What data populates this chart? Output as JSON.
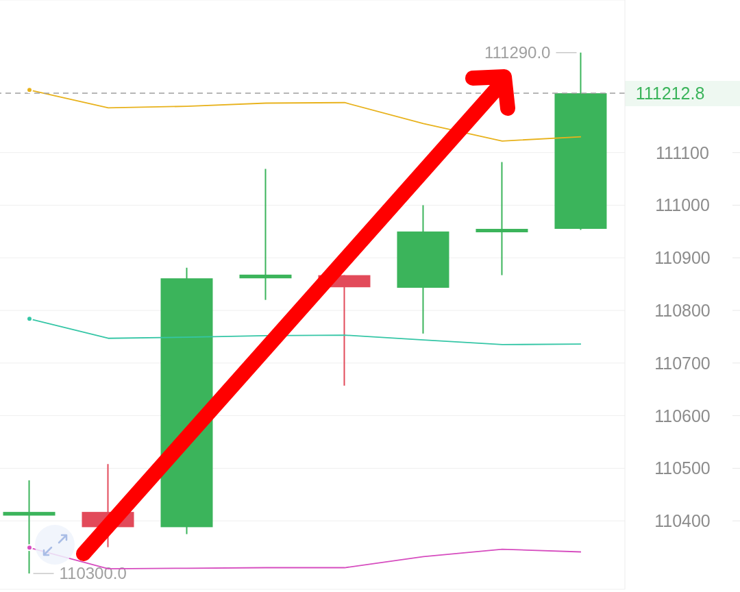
{
  "chart_data": {
    "type": "candlestick",
    "categories": [
      null,
      null,
      null,
      null,
      null,
      null,
      null,
      null
    ],
    "ohlc": [
      [
        110410,
        110477,
        110300,
        110417
      ],
      [
        110417,
        110508,
        110350,
        110388
      ],
      [
        110388,
        110881,
        110375,
        110861
      ],
      [
        110861,
        111069,
        110820,
        110868
      ],
      [
        110867,
        110867,
        110657,
        110844
      ],
      [
        110843,
        111000,
        110756,
        110950
      ],
      [
        110950,
        111082,
        110867,
        110955
      ],
      [
        110955,
        111290,
        110953,
        111212.8
      ]
    ],
    "colors": [
      "#3bb45b",
      "#e24a5a",
      "#3bb45b",
      "#3bb45b",
      "#e24a5a",
      "#3bb45b",
      "#3bb45b",
      "#3bb45b"
    ],
    "series": [
      {
        "type": "line",
        "color": "#e8b21c",
        "values": [
          111219,
          111185,
          111188,
          111194,
          111195,
          111155,
          111122,
          111130
        ]
      },
      {
        "type": "line",
        "color": "#35c6a6",
        "values": [
          110784,
          110747,
          110749,
          110752,
          110753,
          110744,
          110735,
          110736
        ]
      },
      {
        "type": "line",
        "color": "#d64cbf",
        "values": [
          110349,
          110309,
          110310,
          110311,
          110311,
          110332,
          110346,
          110341
        ]
      }
    ],
    "ylim": [
      110270,
      111390
    ],
    "yticks": [
      110400,
      110500,
      110600,
      110700,
      110800,
      110900,
      111000,
      111100
    ],
    "grid": "y",
    "tick_labels": "y",
    "ref_lines": [
      {
        "axis": "y",
        "value": 111212.8,
        "label": "111212.8",
        "color": "#9e9e9e",
        "line_style": "dashed"
      }
    ],
    "annotations": [
      "111290.0",
      "110300.0"
    ]
  }
}
